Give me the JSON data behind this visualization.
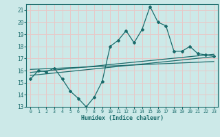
{
  "title": "",
  "xlabel": "Humidex (Indice chaleur)",
  "bg_color": "#cce9e8",
  "grid_color": "#e8c8c8",
  "line_color": "#1a6b6b",
  "xlim": [
    -0.5,
    23.5
  ],
  "ylim": [
    13,
    21.5
  ],
  "yticks": [
    13,
    14,
    15,
    16,
    17,
    18,
    19,
    20,
    21
  ],
  "xticks": [
    0,
    1,
    2,
    3,
    4,
    5,
    6,
    7,
    8,
    9,
    10,
    11,
    12,
    13,
    14,
    15,
    16,
    17,
    18,
    19,
    20,
    21,
    22,
    23
  ],
  "main_x": [
    0,
    1,
    2,
    3,
    4,
    5,
    6,
    7,
    8,
    9,
    10,
    11,
    12,
    13,
    14,
    15,
    16,
    17,
    18,
    19,
    20,
    21,
    22,
    23
  ],
  "main_y": [
    15.3,
    16.0,
    15.9,
    16.2,
    15.3,
    14.3,
    13.7,
    13.0,
    13.8,
    15.1,
    18.0,
    18.5,
    19.3,
    18.3,
    19.4,
    21.3,
    20.0,
    19.7,
    17.6,
    17.6,
    18.0,
    17.4,
    17.3,
    17.2
  ],
  "trend1_x": [
    0,
    23
  ],
  "trend1_y": [
    15.6,
    17.15
  ],
  "trend2_x": [
    0,
    23
  ],
  "trend2_y": [
    15.85,
    17.35
  ],
  "trend3_x": [
    0,
    23
  ],
  "trend3_y": [
    16.1,
    16.75
  ]
}
